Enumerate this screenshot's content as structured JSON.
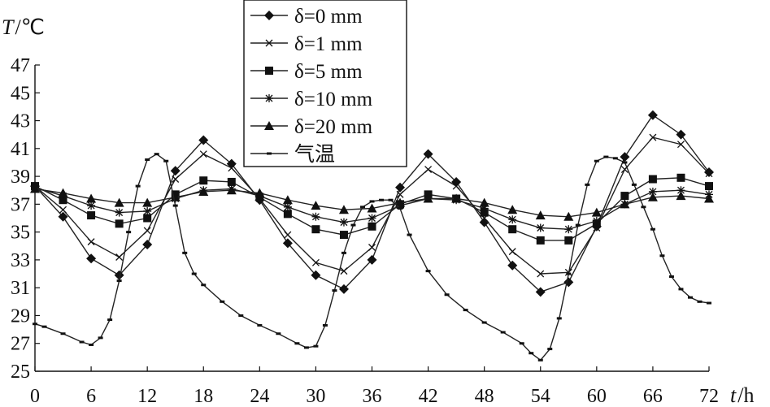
{
  "chart_data": {
    "type": "line",
    "xlabel": "t",
    "xunit": "h",
    "ylabel": "T",
    "yunit": "℃",
    "xlim": [
      0,
      72
    ],
    "ylim": [
      25,
      47
    ],
    "xticks": [
      0,
      6,
      12,
      18,
      24,
      30,
      36,
      42,
      48,
      54,
      60,
      66,
      72
    ],
    "yticks": [
      25,
      27,
      29,
      31,
      33,
      35,
      37,
      39,
      41,
      43,
      45,
      47
    ],
    "grid": false,
    "legend_position": "top-center",
    "series": [
      {
        "name": "δ=0 mm",
        "marker": "diamond",
        "x": [
          0,
          3,
          6,
          9,
          12,
          15,
          18,
          21,
          24,
          27,
          30,
          33,
          36,
          39,
          42,
          45,
          48,
          51,
          54,
          57,
          60,
          63,
          66,
          69,
          72
        ],
        "y": [
          38.3,
          36.1,
          33.1,
          31.9,
          34.1,
          39.4,
          41.6,
          39.9,
          37.3,
          34.2,
          31.9,
          30.9,
          33.0,
          38.2,
          40.6,
          38.6,
          35.7,
          32.6,
          30.7,
          31.4,
          35.4,
          40.4,
          43.4,
          42.0,
          39.3
        ]
      },
      {
        "name": "δ=1 mm",
        "marker": "x",
        "x": [
          0,
          3,
          6,
          9,
          12,
          15,
          18,
          21,
          24,
          27,
          30,
          33,
          36,
          39,
          42,
          45,
          48,
          51,
          54,
          57,
          60,
          63,
          66,
          69,
          72
        ],
        "y": [
          38.3,
          36.6,
          34.3,
          33.2,
          35.1,
          38.8,
          40.6,
          39.6,
          37.4,
          34.8,
          32.8,
          32.2,
          33.9,
          37.7,
          39.5,
          38.3,
          36.0,
          33.6,
          32.0,
          32.1,
          35.3,
          39.5,
          41.8,
          41.3,
          39.2
        ]
      },
      {
        "name": "δ=5 mm",
        "marker": "square",
        "x": [
          0,
          3,
          6,
          9,
          12,
          15,
          18,
          21,
          24,
          27,
          30,
          33,
          36,
          39,
          42,
          45,
          48,
          51,
          54,
          57,
          60,
          63,
          66,
          69,
          72
        ],
        "y": [
          38.3,
          37.3,
          36.2,
          35.6,
          36.0,
          37.7,
          38.7,
          38.6,
          37.5,
          36.3,
          35.2,
          34.8,
          35.4,
          37.0,
          37.7,
          37.4,
          36.4,
          35.2,
          34.4,
          34.4,
          35.6,
          37.6,
          38.8,
          38.9,
          38.3
        ]
      },
      {
        "name": "δ=10 mm",
        "marker": "asterisk",
        "x": [
          0,
          3,
          6,
          9,
          12,
          15,
          18,
          21,
          24,
          27,
          30,
          33,
          36,
          39,
          42,
          45,
          48,
          51,
          54,
          57,
          60,
          63,
          66,
          69,
          72
        ],
        "y": [
          38.2,
          37.6,
          36.9,
          36.4,
          36.5,
          37.4,
          38.0,
          38.1,
          37.6,
          36.8,
          36.1,
          35.7,
          36.0,
          36.9,
          37.4,
          37.3,
          36.7,
          35.9,
          35.3,
          35.2,
          35.8,
          37.0,
          37.9,
          38.0,
          37.7
        ]
      },
      {
        "name": "δ=20 mm",
        "marker": "triangle",
        "x": [
          0,
          3,
          6,
          9,
          12,
          15,
          18,
          21,
          24,
          27,
          30,
          33,
          36,
          39,
          42,
          45,
          48,
          51,
          54,
          57,
          60,
          63,
          66,
          69,
          72
        ],
        "y": [
          38.1,
          37.8,
          37.4,
          37.1,
          37.1,
          37.5,
          37.9,
          38.0,
          37.8,
          37.3,
          36.9,
          36.6,
          36.7,
          37.1,
          37.4,
          37.4,
          37.1,
          36.6,
          36.2,
          36.1,
          36.4,
          37.0,
          37.5,
          37.6,
          37.4
        ]
      },
      {
        "name": "气温",
        "marker": "dash",
        "x": [
          0,
          1,
          3,
          5,
          6,
          7,
          8,
          9,
          10,
          11,
          12,
          13,
          14,
          15,
          16,
          17,
          18,
          20,
          22,
          24,
          26,
          28,
          29,
          30,
          31,
          32,
          33,
          34,
          35,
          36,
          37,
          38,
          39,
          40,
          42,
          44,
          46,
          48,
          50,
          52,
          53,
          54,
          55,
          56,
          57,
          58,
          59,
          60,
          61,
          62,
          63,
          64,
          65,
          66,
          67,
          68,
          69,
          70,
          71,
          72
        ],
        "y": [
          28.4,
          28.2,
          27.7,
          27.1,
          26.9,
          27.4,
          28.7,
          31.5,
          35.0,
          38.3,
          40.2,
          40.6,
          40.1,
          36.9,
          33.5,
          32.0,
          31.2,
          30.0,
          29.0,
          28.3,
          27.7,
          27.0,
          26.7,
          26.8,
          28.3,
          30.8,
          33.5,
          35.5,
          36.8,
          37.2,
          37.3,
          37.3,
          36.7,
          34.8,
          32.2,
          30.5,
          29.4,
          28.5,
          27.8,
          27.0,
          26.3,
          25.8,
          26.6,
          28.8,
          32.0,
          35.5,
          38.4,
          40.1,
          40.4,
          40.3,
          40.0,
          38.4,
          36.8,
          35.2,
          33.3,
          31.8,
          30.9,
          30.3,
          30.0,
          29.9
        ]
      }
    ]
  }
}
